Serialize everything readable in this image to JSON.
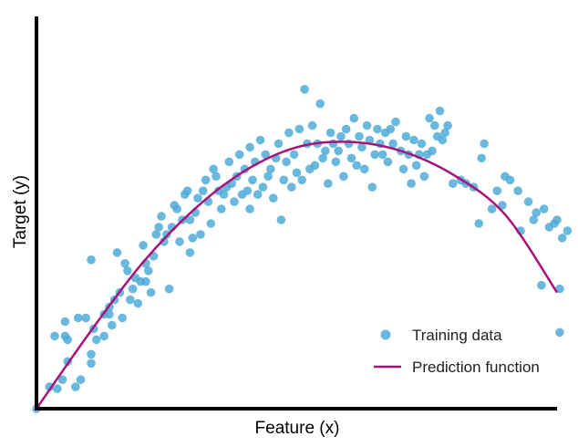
{
  "chart_data": {
    "type": "scatter",
    "title": "",
    "xlabel": "Feature (x)",
    "ylabel": "Target (y)",
    "xlim": [
      0,
      10
    ],
    "ylim": [
      0,
      10
    ],
    "grid": false,
    "ticks": false,
    "legend_placement": "bottom-right",
    "series": [
      {
        "name": "Training data",
        "kind": "scatter",
        "color": "#4aa8d8",
        "points": [
          [
            0.0,
            0.0
          ],
          [
            0.25,
            0.6
          ],
          [
            0.4,
            0.55
          ],
          [
            0.5,
            0.8
          ],
          [
            0.6,
            1.3
          ],
          [
            0.75,
            0.6
          ],
          [
            0.85,
            0.8
          ],
          [
            0.55,
            2.0
          ],
          [
            0.6,
            1.9
          ],
          [
            0.35,
            2.0
          ],
          [
            0.55,
            2.4
          ],
          [
            0.8,
            2.5
          ],
          [
            0.95,
            2.5
          ],
          [
            1.05,
            1.25
          ],
          [
            1.05,
            1.5
          ],
          [
            1.1,
            2.2
          ],
          [
            1.05,
            4.1
          ],
          [
            1.15,
            1.9
          ],
          [
            1.3,
            2.0
          ],
          [
            1.4,
            2.6
          ],
          [
            1.45,
            2.3
          ],
          [
            1.3,
            2.6
          ],
          [
            1.4,
            2.8
          ],
          [
            1.5,
            3.0
          ],
          [
            1.55,
            4.3
          ],
          [
            1.6,
            3.2
          ],
          [
            1.65,
            2.5
          ],
          [
            1.7,
            4.0
          ],
          [
            1.75,
            3.8
          ],
          [
            1.8,
            3.0
          ],
          [
            1.85,
            3.3
          ],
          [
            1.9,
            3.6
          ],
          [
            1.95,
            2.9
          ],
          [
            2.0,
            3.5
          ],
          [
            2.05,
            4.5
          ],
          [
            2.1,
            3.5
          ],
          [
            2.1,
            4.0
          ],
          [
            2.15,
            3.8
          ],
          [
            2.2,
            3.2
          ],
          [
            2.25,
            4.2
          ],
          [
            2.3,
            4.8
          ],
          [
            2.35,
            5.0
          ],
          [
            2.4,
            5.3
          ],
          [
            2.45,
            4.6
          ],
          [
            2.5,
            4.8
          ],
          [
            2.55,
            3.3
          ],
          [
            2.6,
            5.0
          ],
          [
            2.65,
            5.6
          ],
          [
            2.7,
            5.5
          ],
          [
            2.75,
            4.6
          ],
          [
            2.8,
            5.2
          ],
          [
            2.85,
            5.9
          ],
          [
            2.9,
            6.0
          ],
          [
            2.95,
            5.2
          ],
          [
            2.95,
            4.3
          ],
          [
            3.0,
            4.7
          ],
          [
            3.05,
            5.4
          ],
          [
            3.1,
            5.8
          ],
          [
            3.15,
            4.8
          ],
          [
            3.2,
            6.0
          ],
          [
            3.25,
            6.3
          ],
          [
            3.3,
            5.7
          ],
          [
            3.35,
            5.1
          ],
          [
            3.4,
            6.6
          ],
          [
            3.45,
            6.4
          ],
          [
            3.5,
            6.0
          ],
          [
            3.55,
            5.5
          ],
          [
            3.6,
            5.9
          ],
          [
            3.65,
            6.1
          ],
          [
            3.7,
            6.8
          ],
          [
            3.75,
            6.2
          ],
          [
            3.8,
            5.7
          ],
          [
            3.85,
            6.4
          ],
          [
            3.9,
            7.0
          ],
          [
            3.95,
            5.9
          ],
          [
            4.0,
            6.6
          ],
          [
            4.05,
            6.0
          ],
          [
            4.1,
            5.5
          ],
          [
            4.1,
            7.2
          ],
          [
            4.15,
            6.3
          ],
          [
            4.2,
            6.8
          ],
          [
            4.25,
            5.9
          ],
          [
            4.3,
            7.4
          ],
          [
            4.35,
            6.1
          ],
          [
            4.4,
            7.0
          ],
          [
            4.45,
            6.4
          ],
          [
            4.5,
            6.6
          ],
          [
            4.55,
            5.8
          ],
          [
            4.6,
            6.9
          ],
          [
            4.65,
            7.3
          ],
          [
            4.7,
            5.2
          ],
          [
            4.75,
            6.3
          ],
          [
            4.8,
            6.8
          ],
          [
            4.85,
            7.6
          ],
          [
            4.9,
            6.1
          ],
          [
            4.95,
            7.0
          ],
          [
            5.0,
            6.5
          ],
          [
            5.05,
            7.7
          ],
          [
            5.1,
            6.3
          ],
          [
            5.15,
            8.8
          ],
          [
            5.2,
            7.3
          ],
          [
            5.25,
            6.6
          ],
          [
            5.3,
            7.8
          ],
          [
            5.35,
            6.7
          ],
          [
            5.4,
            7.3
          ],
          [
            5.45,
            8.4
          ],
          [
            5.5,
            6.9
          ],
          [
            5.55,
            7.1
          ],
          [
            5.6,
            6.2
          ],
          [
            5.65,
            7.6
          ],
          [
            5.7,
            7.3
          ],
          [
            5.75,
            6.8
          ],
          [
            5.8,
            7.1
          ],
          [
            5.85,
            7.5
          ],
          [
            5.9,
            6.4
          ],
          [
            5.95,
            7.7
          ],
          [
            6.0,
            7.3
          ],
          [
            6.05,
            6.9
          ],
          [
            6.1,
            8.0
          ],
          [
            6.15,
            6.7
          ],
          [
            6.2,
            7.5
          ],
          [
            6.25,
            7.2
          ],
          [
            6.3,
            6.6
          ],
          [
            6.35,
            7.8
          ],
          [
            6.4,
            7.4
          ],
          [
            6.45,
            6.1
          ],
          [
            6.5,
            7.0
          ],
          [
            6.55,
            7.7
          ],
          [
            6.6,
            7.3
          ],
          [
            6.65,
            7.0
          ],
          [
            6.7,
            7.6
          ],
          [
            6.75,
            6.8
          ],
          [
            6.8,
            7.7
          ],
          [
            6.85,
            7.3
          ],
          [
            6.9,
            7.9
          ],
          [
            7.0,
            7.1
          ],
          [
            7.05,
            6.6
          ],
          [
            7.1,
            7.5
          ],
          [
            7.15,
            7.0
          ],
          [
            7.2,
            6.2
          ],
          [
            7.25,
            7.4
          ],
          [
            7.3,
            6.7
          ],
          [
            7.35,
            7.0
          ],
          [
            7.4,
            7.3
          ],
          [
            7.45,
            6.4
          ],
          [
            7.5,
            7.0
          ],
          [
            7.55,
            8.0
          ],
          [
            7.6,
            7.1
          ],
          [
            7.65,
            7.8
          ],
          [
            7.7,
            7.5
          ],
          [
            7.75,
            8.2
          ],
          [
            7.8,
            7.4
          ],
          [
            7.85,
            7.6
          ],
          [
            7.9,
            7.8
          ],
          [
            8.0,
            6.2
          ],
          [
            8.15,
            6.3
          ],
          [
            8.25,
            6.2
          ],
          [
            8.4,
            6.1
          ],
          [
            8.5,
            5.1
          ],
          [
            8.55,
            6.9
          ],
          [
            8.6,
            7.3
          ],
          [
            8.75,
            5.5
          ],
          [
            9.0,
            6.4
          ],
          [
            9.1,
            6.3
          ],
          [
            9.25,
            6.0
          ],
          [
            9.3,
            4.9
          ],
          [
            9.45,
            5.7
          ],
          [
            9.55,
            5.2
          ],
          [
            9.6,
            5.4
          ],
          [
            9.75,
            5.5
          ],
          [
            9.85,
            5.0
          ],
          [
            9.95,
            5.1
          ],
          [
            10.0,
            5.2
          ],
          [
            10.1,
            4.7
          ],
          [
            8.95,
            5.6
          ],
          [
            8.85,
            6.0
          ],
          [
            9.7,
            3.4
          ],
          [
            10.05,
            3.3
          ],
          [
            10.05,
            2.1
          ],
          [
            10.2,
            4.9
          ]
        ]
      },
      {
        "name": "Prediction function",
        "kind": "line",
        "color": "#a8127a",
        "x": [
          0,
          1,
          2,
          3,
          4,
          5,
          6,
          7,
          8,
          9,
          10
        ],
        "y": [
          0,
          2.05,
          3.95,
          5.45,
          6.55,
          7.2,
          7.35,
          7.1,
          6.45,
          5.35,
          3.2
        ]
      }
    ]
  }
}
